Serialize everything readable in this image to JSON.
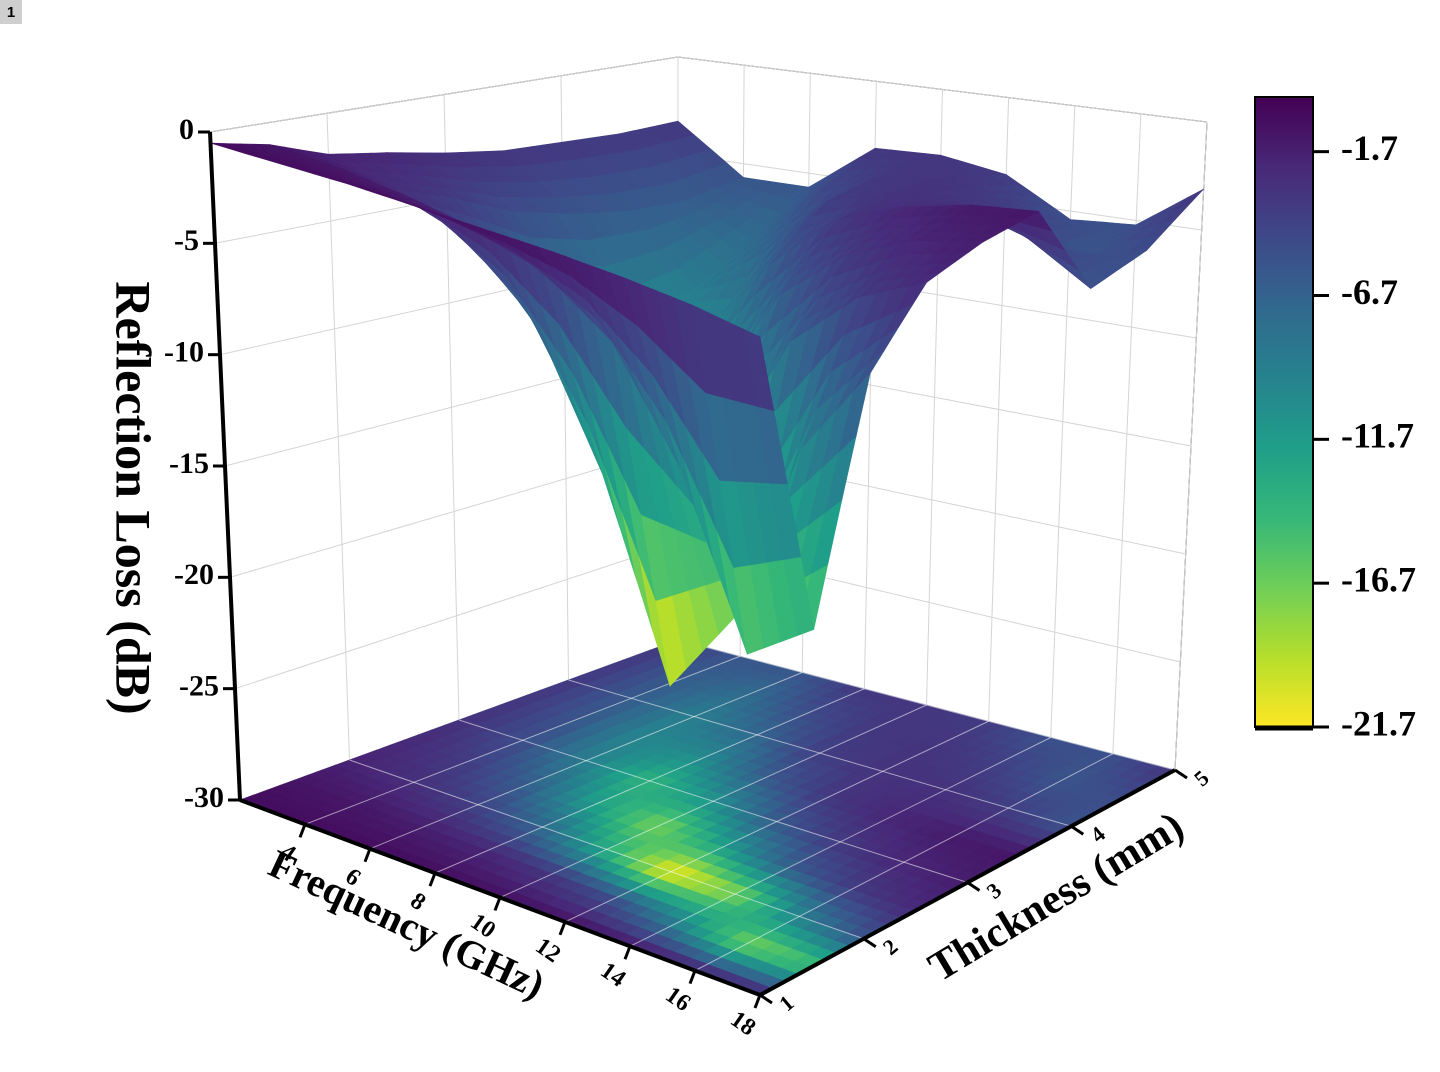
{
  "panel_label": "1",
  "chart_data": {
    "type": "surface3d",
    "x_label": "Frequency (GHz)",
    "y_label": "Thickness (mm)",
    "z_label": "Reflection Loss (dB)",
    "x": [
      2,
      4,
      6,
      8,
      10,
      12,
      14,
      16,
      18
    ],
    "y": [
      1,
      1.5,
      2,
      2.5,
      3,
      3.5,
      4,
      4.5,
      5
    ],
    "z": [
      [
        -0.5,
        -0.5,
        -0.5,
        -0.6,
        -0.7,
        -0.8,
        -1.0,
        -1.3,
        -1.8
      ],
      [
        -1.0,
        -1.2,
        -1.6,
        -2.2,
        -3.3,
        -5.5,
        -10.2,
        -17.4,
        -15.4
      ],
      [
        -1.9,
        -2.7,
        -4.1,
        -7.0,
        -13.1,
        -21.7,
        -17.7,
        -9.4,
        -5.3
      ],
      [
        -2.3,
        -3.7,
        -6.4,
        -12.0,
        -17.3,
        -12.0,
        -6.4,
        -3.7,
        -2.3
      ],
      [
        -2.8,
        -4.9,
        -9.1,
        -14.2,
        -10.9,
        -5.9,
        -3.4,
        -2.1,
        -1.5
      ],
      [
        -3.2,
        -5.6,
        -10.0,
        -10.4,
        -6.0,
        -3.3,
        -2.1,
        -1.4,
        -1.1
      ],
      [
        -3.3,
        -6.1,
        -9.2,
        -7.0,
        -3.8,
        -3.0,
        -2.9,
        -3.8,
        -5.6
      ],
      [
        -3.4,
        -6.2,
        -7.6,
        -4.8,
        -3.4,
        -3.1,
        -3.9,
        -5.6,
        -4.9
      ],
      [
        -3.3,
        -5.7,
        -5.7,
        -3.3,
        -3.2,
        -3.7,
        -5.4,
        -5.2,
        -3.1
      ]
    ],
    "xlim": [
      2,
      18
    ],
    "ylim": [
      1,
      5
    ],
    "zlim": [
      -30,
      0
    ],
    "xticks": [
      4,
      6,
      8,
      10,
      12,
      14,
      16,
      18
    ],
    "yticks": [
      1,
      2,
      3,
      4,
      5
    ],
    "zticks": [
      0,
      -5,
      -10,
      -15,
      -20,
      -25,
      -30
    ],
    "colormap": [
      "#440154",
      "#482878",
      "#3e4989",
      "#31688e",
      "#26828e",
      "#1f9e89",
      "#35b779",
      "#6ece58",
      "#b5de2b",
      "#fde725"
    ],
    "colorbar": {
      "lim": [
        -21.7,
        0.2
      ],
      "ticks": [
        -1.7,
        -6.7,
        -11.7,
        -16.7,
        -21.7
      ]
    },
    "floor_projection": true,
    "grid": true
  }
}
